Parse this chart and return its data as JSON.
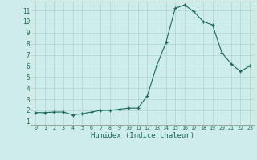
{
  "x": [
    0,
    1,
    2,
    3,
    4,
    5,
    6,
    7,
    8,
    9,
    10,
    11,
    12,
    13,
    14,
    15,
    16,
    17,
    18,
    19,
    20,
    21,
    22,
    23
  ],
  "y": [
    1.8,
    1.8,
    1.85,
    1.85,
    1.6,
    1.7,
    1.85,
    2.0,
    2.0,
    2.1,
    2.2,
    2.2,
    3.3,
    6.0,
    8.1,
    11.2,
    11.5,
    10.9,
    10.0,
    9.7,
    7.2,
    6.2,
    5.5,
    6.0
  ],
  "xlabel": "Humidex (Indice chaleur)",
  "xlim": [
    -0.5,
    23.5
  ],
  "ylim": [
    0.7,
    11.8
  ],
  "yticks": [
    1,
    2,
    3,
    4,
    5,
    6,
    7,
    8,
    9,
    10,
    11
  ],
  "xticks": [
    0,
    1,
    2,
    3,
    4,
    5,
    6,
    7,
    8,
    9,
    10,
    11,
    12,
    13,
    14,
    15,
    16,
    17,
    18,
    19,
    20,
    21,
    22,
    23
  ],
  "line_color": "#1a6b5a",
  "bg_color": "#ceecea",
  "grid_color": "#b0d4d0",
  "figure_bg": "#ceecea"
}
